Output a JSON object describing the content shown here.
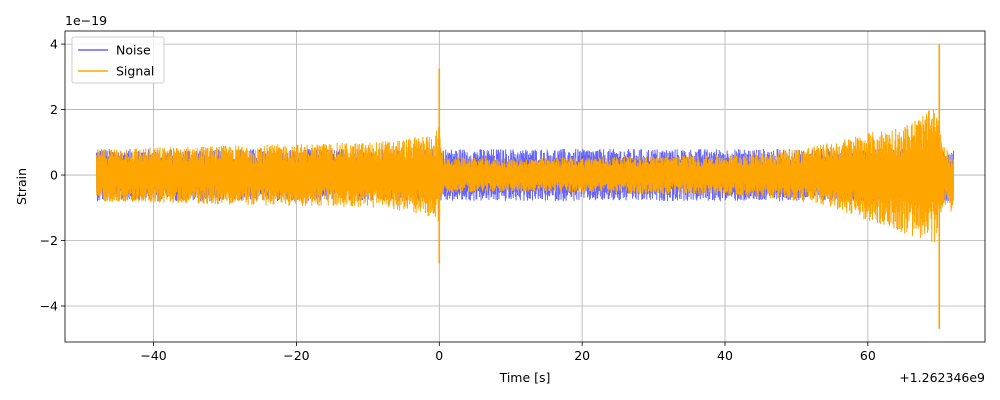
{
  "chart_data": {
    "type": "line",
    "title": "",
    "xlabel": "Time [s]",
    "ylabel": "Strain",
    "x_offset_label": "+1.262346e9",
    "y_scale_label": "1e−19",
    "xlim": [
      -52.4,
      76.4
    ],
    "ylim": [
      -5.1,
      4.4
    ],
    "x_ticks": [
      -40,
      -20,
      0,
      20,
      40,
      60
    ],
    "x_tick_labels": [
      "−40",
      "−20",
      "0",
      "20",
      "40",
      "60"
    ],
    "y_ticks": [
      -4,
      -2,
      0,
      2,
      4
    ],
    "y_tick_labels": [
      "−4",
      "−2",
      "0",
      "2",
      "4"
    ],
    "grid": true,
    "legend_position": "top-left",
    "series": [
      {
        "name": "Noise",
        "color": "#0000ff",
        "opacity": 0.6,
        "x_range": [
          -48,
          72
        ],
        "envelope": [
          [
            -48,
            0.8
          ],
          [
            72,
            0.8
          ]
        ]
      },
      {
        "name": "Signal",
        "color": "#ffa500",
        "opacity": 1.0,
        "x_range": [
          -48,
          72
        ],
        "envelope_upper": [
          [
            -48,
            0.8
          ],
          [
            -40,
            0.85
          ],
          [
            -30,
            0.9
          ],
          [
            -20,
            0.95
          ],
          [
            -10,
            1.0
          ],
          [
            -5,
            1.1
          ],
          [
            -1,
            1.25
          ],
          [
            0,
            1.5
          ],
          [
            0.5,
            0.55
          ],
          [
            10,
            0.5
          ],
          [
            20,
            0.55
          ],
          [
            30,
            0.6
          ],
          [
            40,
            0.6
          ],
          [
            50,
            0.8
          ],
          [
            55,
            1.0
          ],
          [
            60,
            1.3
          ],
          [
            65,
            1.5
          ],
          [
            69.5,
            2.1
          ],
          [
            70.5,
            0.9
          ],
          [
            72,
            0.6
          ]
        ],
        "envelope_lower": [
          [
            -48,
            -0.8
          ],
          [
            -40,
            -0.85
          ],
          [
            -30,
            -0.9
          ],
          [
            -20,
            -0.95
          ],
          [
            -10,
            -1.0
          ],
          [
            -5,
            -1.1
          ],
          [
            -1,
            -1.3
          ],
          [
            0,
            -1.5
          ],
          [
            0.5,
            -0.55
          ],
          [
            10,
            -0.5
          ],
          [
            20,
            -0.55
          ],
          [
            30,
            -0.6
          ],
          [
            40,
            -0.6
          ],
          [
            50,
            -0.8
          ],
          [
            55,
            -1.0
          ],
          [
            60,
            -1.4
          ],
          [
            65,
            -1.8
          ],
          [
            69.5,
            -2.2
          ],
          [
            70.5,
            -0.9
          ],
          [
            72,
            -1.2
          ]
        ],
        "spikes": [
          {
            "x": 0,
            "y_max": 3.25,
            "y_min": -2.7
          },
          {
            "x": 70.0,
            "y_max": 4.0,
            "y_min": -4.7
          }
        ]
      }
    ]
  }
}
